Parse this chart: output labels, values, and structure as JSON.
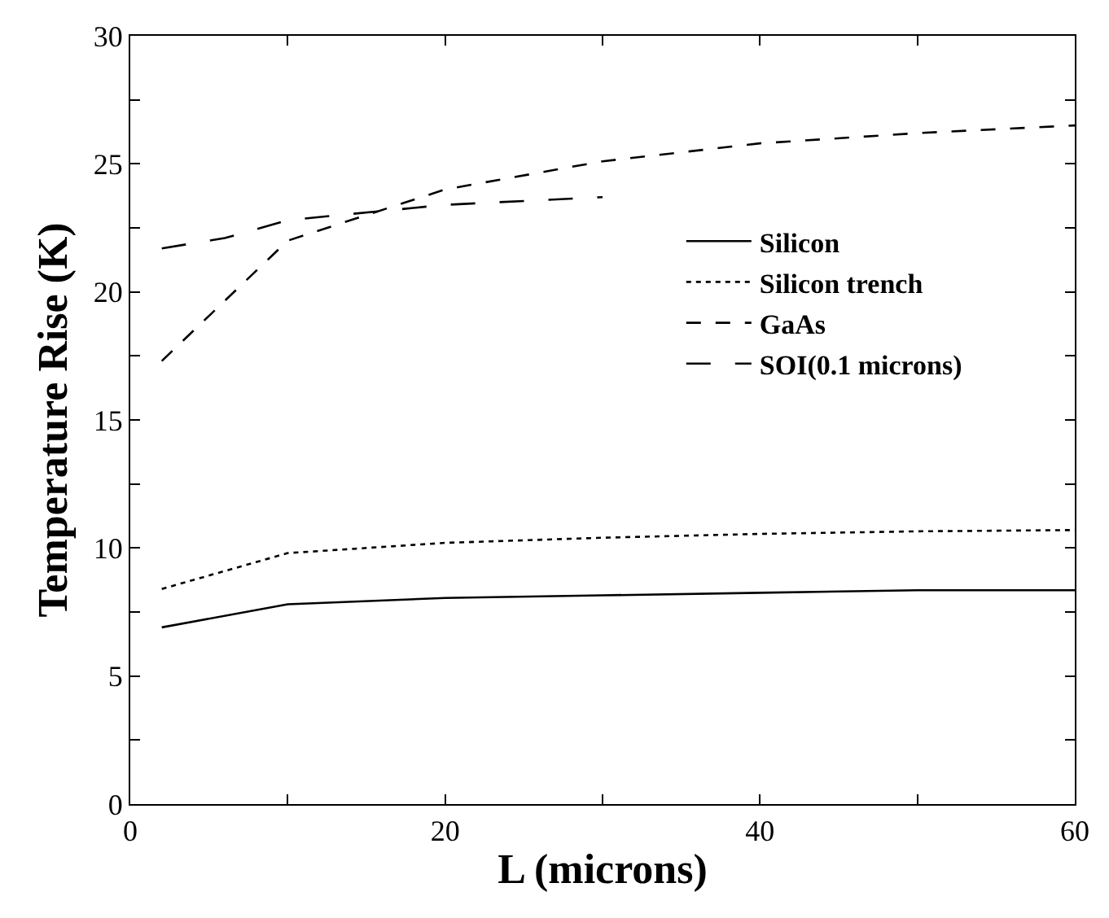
{
  "chart_data": {
    "type": "line",
    "xlabel": "L (microns)",
    "ylabel": "Temperature Rise (K)",
    "xlim": [
      0,
      60
    ],
    "xticks": [
      0,
      {
        "value": 10,
        "label": null
      },
      20,
      {
        "value": 30,
        "label": null
      },
      40,
      {
        "value": 50,
        "label": null
      },
      60
    ],
    "ylim": [
      0,
      30
    ],
    "yticks": [
      0,
      {
        "value": 2.5,
        "label": null
      },
      5,
      {
        "value": 7.5,
        "label": null
      },
      10,
      {
        "value": 12.5,
        "label": null
      },
      15,
      {
        "value": 17.5,
        "label": null
      },
      20,
      {
        "value": 22.5,
        "label": null
      },
      25,
      {
        "value": 27.5,
        "label": null
      },
      30
    ],
    "legend": "right",
    "marker": "none",
    "series": [
      {
        "name": "Silicon",
        "color": "#000000",
        "line_style": "solid",
        "x": [
          2,
          10,
          20,
          30,
          40,
          50,
          60
        ],
        "values": [
          6.9,
          7.8,
          8.05,
          8.15,
          8.25,
          8.35,
          8.35
        ]
      },
      {
        "name": "Silicon trench",
        "color": "#000000",
        "line_style": "dotted",
        "x": [
          2,
          10,
          20,
          30,
          40,
          50,
          60
        ],
        "values": [
          8.4,
          9.8,
          10.2,
          10.4,
          10.55,
          10.65,
          10.7
        ]
      },
      {
        "name": "GaAs",
        "color": "#000000",
        "line_style": "dashed",
        "x": [
          2,
          10,
          20,
          30,
          40,
          50,
          60
        ],
        "values": [
          17.3,
          22.0,
          24.0,
          25.1,
          25.8,
          26.2,
          26.5
        ]
      },
      {
        "name": "SOI(0.1 microns)",
        "color": "#000000",
        "line_style": "longdash",
        "x": [
          2,
          6,
          10,
          20,
          30
        ],
        "values": [
          21.7,
          22.1,
          22.8,
          23.4,
          23.7
        ]
      }
    ]
  }
}
